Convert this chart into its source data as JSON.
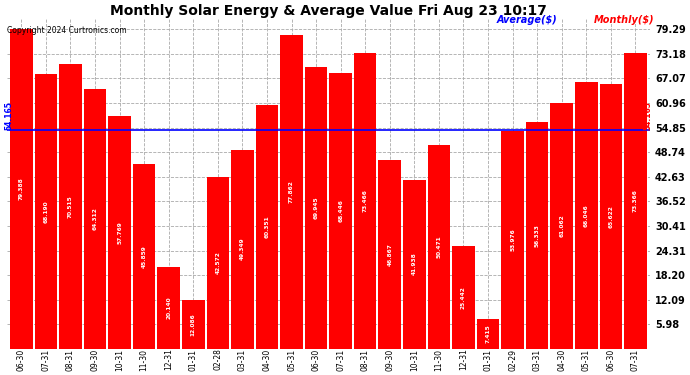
{
  "title": "Monthly Solar Energy & Average Value Fri Aug 23 10:17",
  "copyright": "Copyright 2024 Curtronics.com",
  "categories": [
    "06-30",
    "07-31",
    "08-31",
    "09-30",
    "10-31",
    "11-30",
    "12-31",
    "01-31",
    "02-28",
    "03-31",
    "04-30",
    "05-31",
    "06-30",
    "07-31",
    "08-31",
    "09-30",
    "10-31",
    "11-30",
    "12-31",
    "01-31",
    "02-29",
    "03-31",
    "04-30",
    "05-31",
    "06-30",
    "07-31"
  ],
  "values": [
    79.388,
    68.19,
    70.515,
    64.312,
    57.769,
    45.859,
    20.14,
    12.086,
    42.572,
    49.349,
    60.351,
    77.862,
    69.945,
    68.446,
    73.466,
    46.867,
    41.938,
    50.471,
    25.442,
    7.415,
    53.976,
    56.333,
    61.062,
    66.046,
    65.622,
    73.366
  ],
  "average": 54.165,
  "bar_color": "#ff0000",
  "average_line_color": "#0000ff",
  "average_label_color": "#0000ff",
  "monthly_label_color": "#ff0000",
  "background_color": "#ffffff",
  "grid_color": "#aaaaaa",
  "text_color": "#000000",
  "yticks": [
    5.98,
    12.09,
    18.2,
    24.31,
    30.41,
    36.52,
    42.63,
    48.74,
    54.85,
    60.96,
    67.07,
    73.18,
    79.29
  ],
  "ymin": 0,
  "ymax": 82,
  "avg_annotation": "54.165",
  "legend_average": "Average($)",
  "legend_monthly": "Monthly($)"
}
